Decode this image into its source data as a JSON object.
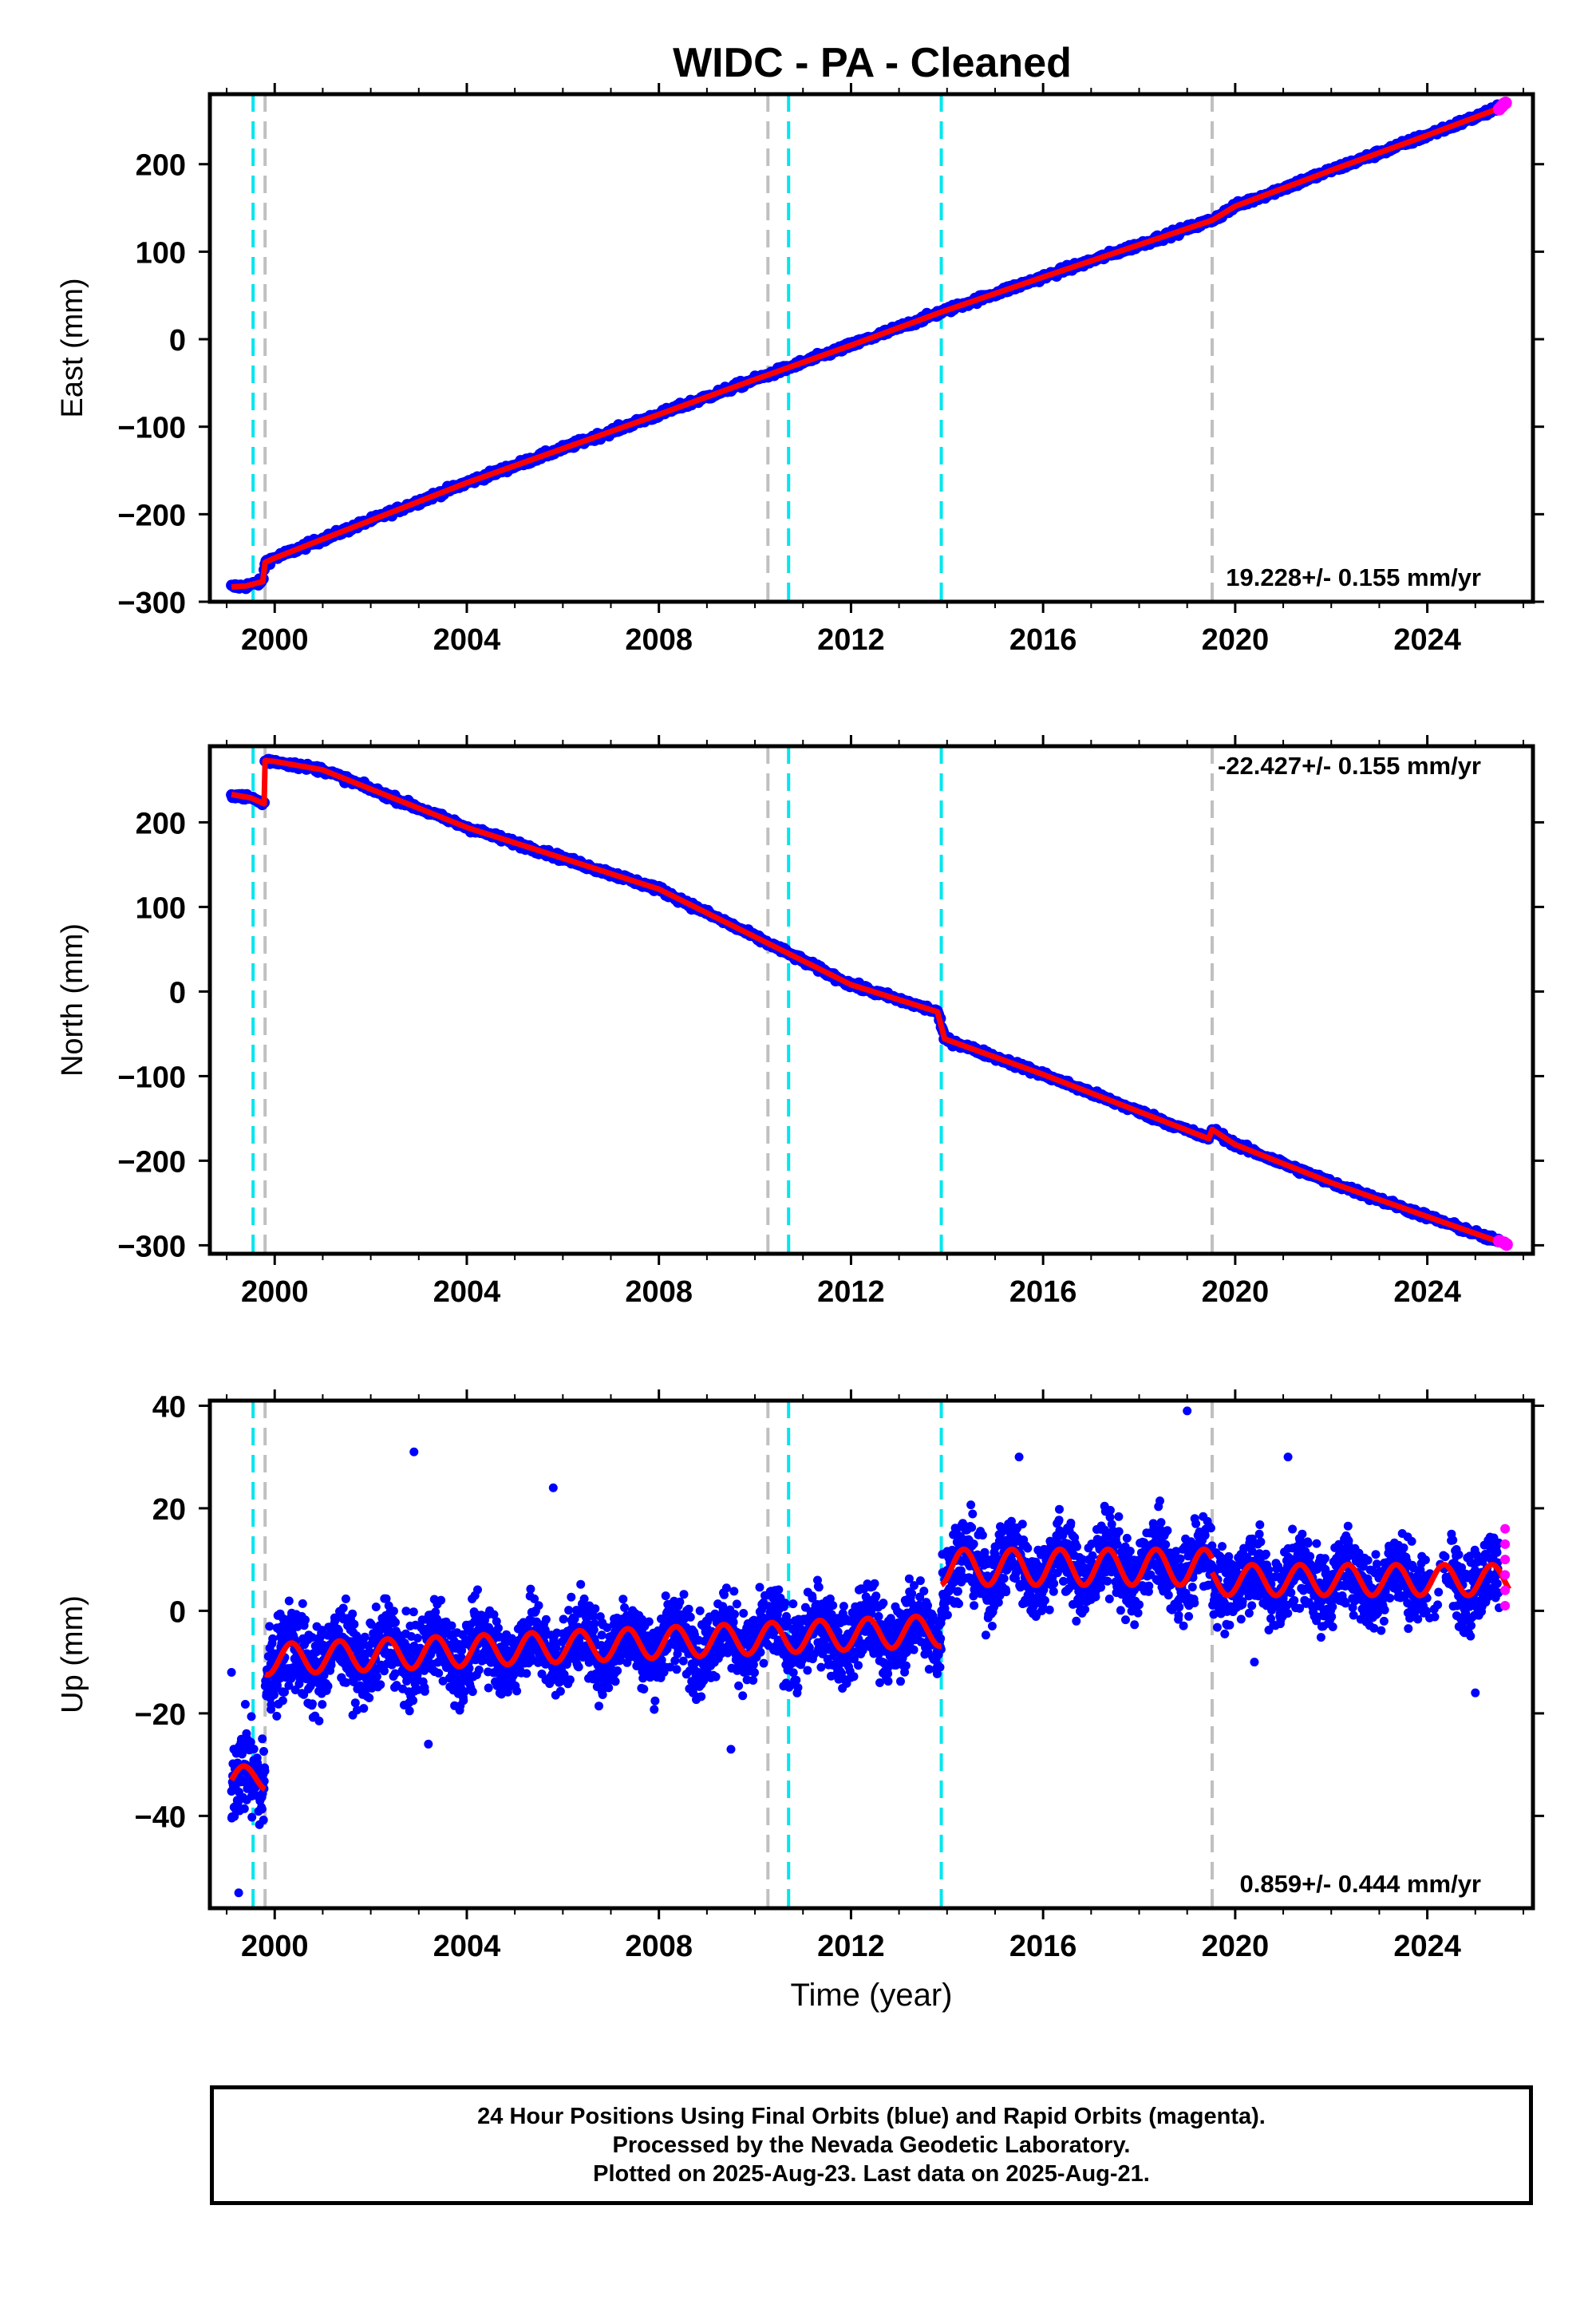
{
  "title": "WIDC  - PA - Cleaned",
  "footer": {
    "line1": "24 Hour Positions Using Final Orbits (blue) and Rapid Orbits (magenta).",
    "line2": "Processed by the Nevada Geodetic Laboratory.",
    "line3": "Plotted on 2025-Aug-23. Last data on 2025-Aug-21."
  },
  "colors": {
    "final_orbits": "#0000ff",
    "rapid_orbits": "#ff00ff",
    "model": "#ff0000",
    "event_cyan": "#00e5ee",
    "event_gray": "#c0c0c0"
  },
  "chart_data": [
    {
      "type": "scatter",
      "ylabel": "East (mm)",
      "xlabel": "",
      "xlim": [
        1998.65,
        2026.2
      ],
      "ylim": [
        -300,
        280
      ],
      "x_ticks": [
        2000,
        2004,
        2008,
        2012,
        2016,
        2020,
        2024
      ],
      "y_ticks": [
        -300,
        -200,
        -100,
        0,
        100,
        200
      ],
      "rate_label": "19.228+/- 0.155 mm/yr",
      "rate_position": "bottom-right",
      "vertical_lines": {
        "cyan": [
          1999.55,
          2010.7,
          2013.88
        ],
        "gray": [
          1999.8,
          2010.27,
          2019.52
        ]
      },
      "model_series": [
        [
          1999.1,
          -283
        ],
        [
          1999.4,
          -282
        ],
        [
          1999.75,
          -277
        ],
        [
          1999.8,
          -255
        ],
        [
          2000,
          -250
        ],
        [
          2004,
          -164
        ],
        [
          2008,
          -86
        ],
        [
          2010,
          -46
        ],
        [
          2012,
          -7
        ],
        [
          2013.88,
          31
        ],
        [
          2016,
          71
        ],
        [
          2019.52,
          136
        ],
        [
          2020,
          152
        ],
        [
          2022,
          193
        ],
        [
          2024,
          233
        ],
        [
          2025.6,
          266
        ]
      ],
      "rapid_points": [
        [
          2025.5,
          263
        ],
        [
          2025.55,
          266
        ],
        [
          2025.6,
          269
        ],
        [
          2025.63,
          270
        ]
      ]
    },
    {
      "type": "scatter",
      "ylabel": "North (mm)",
      "xlabel": "",
      "xlim": [
        1998.65,
        2026.2
      ],
      "ylim": [
        -310,
        290
      ],
      "x_ticks": [
        2000,
        2004,
        2008,
        2012,
        2016,
        2020,
        2024
      ],
      "y_ticks": [
        -300,
        -200,
        -100,
        0,
        100,
        200
      ],
      "rate_label": "-22.427+/- 0.155 mm/yr",
      "rate_position": "top-right",
      "vertical_lines": {
        "cyan": [
          1999.55,
          2010.7,
          2013.88
        ],
        "gray": [
          1999.8,
          2010.27,
          2019.52
        ]
      },
      "model_series": [
        [
          1999.1,
          233
        ],
        [
          1999.5,
          229
        ],
        [
          1999.78,
          222
        ],
        [
          1999.8,
          273
        ],
        [
          2000,
          272
        ],
        [
          2001,
          262
        ],
        [
          2004,
          194
        ],
        [
          2008,
          121
        ],
        [
          2010.27,
          57
        ],
        [
          2012,
          8
        ],
        [
          2013.8,
          -24
        ],
        [
          2013.95,
          -56
        ],
        [
          2016,
          -98
        ],
        [
          2019.45,
          -174
        ],
        [
          2019.52,
          -163
        ],
        [
          2020,
          -181
        ],
        [
          2022,
          -226
        ],
        [
          2024,
          -266
        ],
        [
          2025.6,
          -298
        ]
      ],
      "rapid_points": [
        [
          2025.5,
          -295
        ],
        [
          2025.6,
          -297
        ],
        [
          2025.65,
          -299
        ]
      ]
    },
    {
      "type": "scatter",
      "ylabel": "Up (mm)",
      "xlabel": "Time (year)",
      "xlim": [
        1998.65,
        2026.2
      ],
      "ylim": [
        -58,
        41
      ],
      "x_ticks": [
        2000,
        2004,
        2008,
        2012,
        2016,
        2020,
        2024
      ],
      "y_ticks": [
        -40,
        -20,
        0,
        20,
        40
      ],
      "rate_label": "0.859+/- 0.444 mm/yr",
      "rate_position": "bottom-right",
      "vertical_lines": {
        "cyan": [
          1999.55,
          2010.7,
          2013.88
        ],
        "gray": [
          1999.8,
          2010.27,
          2019.52
        ]
      },
      "model_segments": [
        {
          "start": 1999.1,
          "end": 1999.8,
          "base": -33,
          "slope": 0.86,
          "amp": 2.5
        },
        {
          "start": 1999.8,
          "end": 2013.88,
          "base": -9.5,
          "slope": 0.4,
          "amp": 3.0
        },
        {
          "start": 2013.88,
          "end": 2019.52,
          "base": 8.5,
          "slope": 0.0,
          "amp": 3.5
        },
        {
          "start": 2019.52,
          "end": 2025.7,
          "base": 6.0,
          "slope": 0.0,
          "amp": 3.0
        }
      ],
      "outliers": [
        [
          1999.1,
          -12
        ],
        [
          1999.25,
          -55
        ],
        [
          2002.9,
          31
        ],
        [
          2005.8,
          24
        ],
        [
          2009.5,
          -27
        ],
        [
          2015.5,
          30
        ],
        [
          2019.0,
          39
        ],
        [
          2021.1,
          30
        ],
        [
          2003.2,
          -26
        ],
        [
          2020.4,
          -10
        ],
        [
          2025.0,
          -16
        ]
      ],
      "rapid_points": [
        [
          2025.62,
          1
        ],
        [
          2025.62,
          4
        ],
        [
          2025.62,
          7
        ],
        [
          2025.62,
          10
        ],
        [
          2025.62,
          13
        ],
        [
          2025.62,
          16
        ]
      ]
    }
  ]
}
